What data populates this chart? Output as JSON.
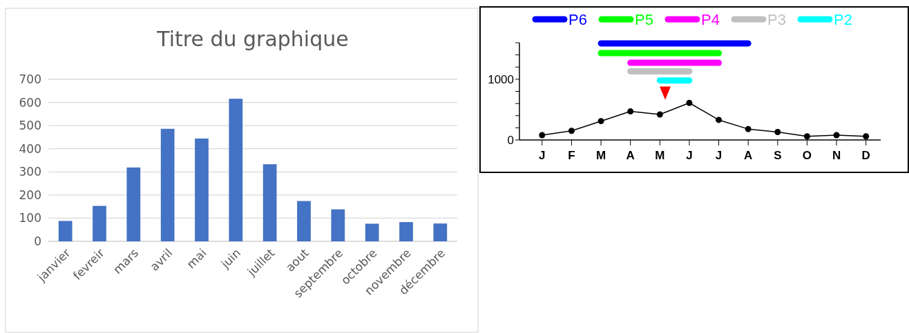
{
  "chart_data": [
    {
      "type": "bar",
      "title": "Titre du graphique",
      "categories": [
        "janvier",
        "fevreir",
        "mars",
        "avril",
        "mai",
        "juin",
        "juillet",
        "aout",
        "septembre",
        "octobre",
        "novembre",
        "décembre"
      ],
      "values": [
        88,
        153,
        319,
        486,
        444,
        616,
        333,
        174,
        138,
        76,
        83,
        77
      ],
      "color": "#4472c4",
      "ylim": [
        0,
        700
      ],
      "yticks": [
        0,
        100,
        200,
        300,
        400,
        500,
        600,
        700
      ],
      "grid": "y"
    },
    {
      "type": "line",
      "categories": [
        "J",
        "F",
        "M",
        "A",
        "M",
        "J",
        "J",
        "A",
        "S",
        "O",
        "N",
        "D"
      ],
      "ylim": [
        0,
        1600
      ],
      "yticks": [
        0,
        {
          "value": 200,
          "label": null
        },
        {
          "value": 400,
          "label": null
        },
        {
          "value": 600,
          "label": null
        },
        {
          "value": 800,
          "label": null
        },
        1000,
        {
          "value": 1200,
          "label": null
        },
        {
          "value": 1400,
          "label": null
        },
        {
          "value": 1600,
          "label": null
        }
      ],
      "legend": "top",
      "series": [
        {
          "color": "#000000",
          "marker": "circle",
          "values": [
            80,
            150,
            310,
            470,
            420,
            610,
            330,
            180,
            130,
            60,
            80,
            60
          ]
        },
        {
          "name": "P6",
          "color": "#0000ff",
          "values": [
            null,
            null,
            1590,
            1590,
            1590,
            1590,
            1590,
            1590,
            null,
            null,
            null,
            null
          ]
        },
        {
          "name": "P5",
          "color": "#00ff00",
          "values": [
            null,
            null,
            1430,
            1430,
            1430,
            1430,
            1430,
            null,
            null,
            null,
            null,
            null
          ]
        },
        {
          "name": "P4",
          "color": "#ff00ff",
          "values": [
            null,
            null,
            null,
            1270,
            1270,
            1270,
            1270,
            null,
            null,
            null,
            null,
            null
          ]
        },
        {
          "name": "P3",
          "color": "#c0c0c0",
          "values": [
            null,
            null,
            null,
            1130,
            1130,
            1130,
            null,
            null,
            null,
            null,
            null,
            null
          ]
        },
        {
          "name": "P2",
          "color": "#00ffff",
          "values": [
            null,
            null,
            null,
            null,
            980,
            980,
            null,
            null,
            null,
            null,
            null,
            null
          ]
        }
      ]
    }
  ]
}
